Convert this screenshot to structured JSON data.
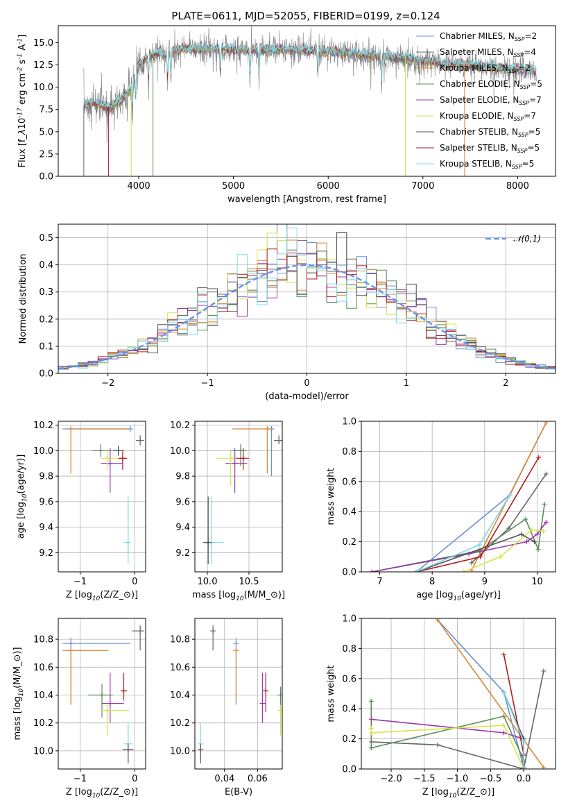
{
  "figure_title": "PLATE=0611, MJD=52055, FIBERID=0199, z=0.124",
  "models": [
    {
      "name": "Chabrier MILES",
      "nssp": "2",
      "color": "#6b8fd6"
    },
    {
      "name": "Salpeter MILES",
      "nssp": "4",
      "color": "#666666"
    },
    {
      "name": "Kroupa MILES",
      "nssp": "2",
      "color": "#d9862e"
    },
    {
      "name": "Chabrier ELODIE",
      "nssp": "5",
      "color": "#5a8a5a"
    },
    {
      "name": "Salpeter ELODIE",
      "nssp": "7",
      "color": "#9a37a8"
    },
    {
      "name": "Kroupa ELODIE",
      "nssp": "7",
      "color": "#d6e34a"
    },
    {
      "name": "Chabrier STELIB",
      "nssp": "5",
      "color": "#555555"
    },
    {
      "name": "Salpeter STELIB",
      "nssp": "5",
      "color": "#b0181e"
    },
    {
      "name": "Kroupa STELIB",
      "nssp": "5",
      "color": "#7fd8e6"
    }
  ],
  "chart_data": [
    {
      "id": "spectrum",
      "type": "line",
      "xlabel": "wavelength [Angstrom, rest frame]",
      "ylabel": "Flux [f$_\\lambda$10$^{-17}$ erg cm$^{-2}$ s$^{-1}$ A$^{-1}$]",
      "xlim": [
        3150,
        8400
      ],
      "ylim": [
        0,
        16.9
      ],
      "xticks": [
        4000,
        5000,
        6000,
        7000,
        8000
      ],
      "yticks": [
        0.0,
        2.5,
        5.0,
        7.5,
        10.0,
        12.5,
        15.0
      ],
      "continuum_x": [
        3420,
        3500,
        3600,
        3700,
        3800,
        3900,
        3950,
        4000,
        4100,
        4200,
        4300,
        4400,
        4600,
        4800,
        5000,
        5200,
        5400,
        5600,
        5800,
        6000,
        6200,
        6400,
        6600,
        6800,
        7000,
        7200,
        7400,
        7600,
        7800,
        8000,
        8200
      ],
      "continuum_y": [
        7.9,
        8.2,
        8.0,
        7.6,
        8.4,
        9.5,
        11.0,
        12.5,
        13.4,
        13.8,
        13.7,
        14.2,
        14.3,
        14.3,
        14.2,
        14.1,
        14.2,
        14.2,
        14.1,
        14.0,
        13.8,
        13.6,
        13.4,
        13.2,
        13.0,
        12.6,
        12.5,
        12.3,
        12.2,
        12.0,
        11.8
      ],
      "absorption_lines": [
        3934,
        3969,
        4102,
        4304,
        4340,
        4861,
        5175,
        5270,
        5890,
        6563
      ],
      "spikes_to_zero": [
        {
          "x": 3420,
          "model": 1
        },
        {
          "x": 3680,
          "model": 7
        },
        {
          "x": 3920,
          "model": 5
        },
        {
          "x": 4150,
          "model": 3
        },
        {
          "x": 6815,
          "model": 5
        },
        {
          "x": 7440,
          "model": 2
        }
      ],
      "legend_position": "upper right"
    },
    {
      "id": "residuals",
      "type": "histogram",
      "xlabel": "(data-model)/error",
      "ylabel": "Normed distribution",
      "xlim": [
        -2.5,
        2.5
      ],
      "ylim": [
        0,
        0.55
      ],
      "xticks": [
        -2,
        -1,
        0,
        1,
        2
      ],
      "yticks": [
        0.0,
        0.1,
        0.2,
        0.3,
        0.4,
        0.5
      ],
      "bin_width": 0.1,
      "reference": {
        "label": "$\\mathcal{N}(0,1)$",
        "color": "#6495ed",
        "mu": 0,
        "sigma": 1
      },
      "legend_position": "upper right",
      "peak_bin": {
        "x": 0.35,
        "value": 0.52
      }
    },
    {
      "id": "age_vs_Z",
      "type": "errorbar",
      "xlabel": "Z [log$_{10}$(Z/Z$_\\odot$)]",
      "ylabel": "age  [log$_{10}$(age/yr)]",
      "xlim": [
        -1.4,
        0.2
      ],
      "ylim": [
        9.05,
        10.23
      ],
      "xticks": [
        -1,
        0
      ],
      "yticks": [
        9.2,
        9.4,
        9.6,
        9.8,
        10.0,
        10.2
      ],
      "points": [
        {
          "m": 0,
          "x": -0.08,
          "xlo": -1.32,
          "xhi": -0.08,
          "y": 10.17,
          "ylo": 10.17,
          "yhi": 10.17
        },
        {
          "m": 2,
          "x": -1.17,
          "xlo": -1.17,
          "xhi": -0.12,
          "y": 10.17,
          "ylo": 9.82,
          "yhi": 10.17
        },
        {
          "m": 8,
          "x": -0.12,
          "xlo": -0.2,
          "xhi": -0.08,
          "y": 9.28,
          "ylo": 9.11,
          "yhi": 9.64
        },
        {
          "m": 3,
          "x": -0.62,
          "xlo": -0.78,
          "xhi": -0.42,
          "y": 10.0,
          "ylo": 9.95,
          "yhi": 10.05
        },
        {
          "m": 4,
          "x": -0.45,
          "xlo": -0.62,
          "xhi": -0.22,
          "y": 9.9,
          "ylo": 9.67,
          "yhi": 10.02
        },
        {
          "m": 5,
          "x": -0.5,
          "xlo": -0.62,
          "xhi": -0.3,
          "y": 9.94,
          "ylo": 9.85,
          "yhi": 10.0
        },
        {
          "m": 7,
          "x": -0.22,
          "xlo": -0.3,
          "xhi": -0.14,
          "y": 9.94,
          "ylo": 9.85,
          "yhi": 10.0
        },
        {
          "m": 6,
          "x": -0.3,
          "xlo": -0.4,
          "xhi": -0.2,
          "y": 10.0,
          "ylo": 9.96,
          "yhi": 10.04
        },
        {
          "m": 1,
          "x": 0.1,
          "xlo": 0.02,
          "xhi": 0.17,
          "y": 10.08,
          "ylo": 10.04,
          "yhi": 10.12
        }
      ]
    },
    {
      "id": "age_vs_mass",
      "type": "errorbar",
      "xlabel": "mass [log$_{10}$(M/M$_\\odot$)]",
      "ylabel": "",
      "xlim": [
        9.85,
        10.9
      ],
      "ylim": [
        9.05,
        10.23
      ],
      "xticks": [
        10.0,
        10.5
      ],
      "yticks": [
        9.2,
        9.4,
        9.6,
        9.8,
        10.0,
        10.2
      ],
      "points": [
        {
          "m": 0,
          "x": 10.77,
          "xlo": 10.73,
          "xhi": 10.8,
          "y": 10.17,
          "ylo": 9.8,
          "yhi": 10.17
        },
        {
          "m": 2,
          "x": 10.72,
          "xlo": 10.3,
          "xhi": 10.72,
          "y": 10.17,
          "ylo": 9.82,
          "yhi": 10.17
        },
        {
          "m": 8,
          "x": 10.05,
          "xlo": 9.95,
          "xhi": 10.2,
          "y": 9.28,
          "ylo": 9.11,
          "yhi": 9.64
        },
        {
          "m": 3,
          "x": 10.4,
          "xlo": 10.28,
          "xhi": 10.47,
          "y": 10.0,
          "ylo": 9.88,
          "yhi": 10.05
        },
        {
          "m": 4,
          "x": 10.33,
          "xlo": 10.22,
          "xhi": 10.48,
          "y": 9.9,
          "ylo": 9.67,
          "yhi": 10.02
        },
        {
          "m": 5,
          "x": 10.28,
          "xlo": 10.1,
          "xhi": 10.32,
          "y": 9.94,
          "ylo": 9.72,
          "yhi": 10.0
        },
        {
          "m": 7,
          "x": 10.43,
          "xlo": 10.34,
          "xhi": 10.5,
          "y": 9.94,
          "ylo": 9.85,
          "yhi": 10.02
        },
        {
          "m": 6,
          "x": 10.01,
          "xlo": 9.95,
          "xhi": 10.05,
          "y": 9.28,
          "ylo": 9.11,
          "yhi": 9.64
        },
        {
          "m": 1,
          "x": 10.86,
          "xlo": 10.8,
          "xhi": 10.9,
          "y": 10.08,
          "ylo": 10.05,
          "yhi": 10.12
        }
      ]
    },
    {
      "id": "mass_weight_vs_age",
      "type": "line",
      "xlabel": "age  [log$_{10}$(age/yr)]",
      "ylabel": "mass weight",
      "xlim": [
        6.65,
        10.35
      ],
      "ylim": [
        0,
        1.0
      ],
      "xticks": [
        7,
        8,
        9,
        10
      ],
      "yticks": [
        0.0,
        0.2,
        0.4,
        0.6,
        0.8,
        1.0
      ],
      "series": [
        {
          "m": 0,
          "x": [
            7.7,
            9.48,
            10.17
          ],
          "y": [
            0.0,
            0.51,
            0.99
          ]
        },
        {
          "m": 1,
          "x": [
            8.75,
            9.46,
            10.17
          ],
          "y": [
            0.06,
            0.29,
            0.65
          ]
        },
        {
          "m": 2,
          "x": [
            8.75,
            10.17
          ],
          "y": [
            0.01,
            0.99
          ]
        },
        {
          "m": 3,
          "x": [
            6.85,
            8.9,
            9.78,
            10.02,
            10.14
          ],
          "y": [
            0.0,
            0.14,
            0.35,
            0.15,
            0.45
          ]
        },
        {
          "m": 4,
          "x": [
            6.85,
            8.7,
            9.8,
            10.0,
            10.17
          ],
          "y": [
            0.0,
            0.12,
            0.2,
            0.25,
            0.33
          ]
        },
        {
          "m": 5,
          "x": [
            8.6,
            9.3,
            9.9,
            10.12
          ],
          "y": [
            0.0,
            0.1,
            0.28,
            0.27
          ]
        },
        {
          "m": 6,
          "x": [
            7.7,
            9.7,
            9.95
          ],
          "y": [
            0.0,
            0.25,
            0.2
          ]
        },
        {
          "m": 7,
          "x": [
            7.7,
            8.92,
            10.03
          ],
          "y": [
            0.0,
            0.1,
            0.76
          ]
        },
        {
          "m": 8,
          "x": [
            7.7,
            8.9,
            9.48
          ],
          "y": [
            0.0,
            0.18,
            0.51
          ]
        }
      ]
    },
    {
      "id": "mass_vs_Z",
      "type": "errorbar",
      "xlabel": "Z [log$_{10}$(Z/Z$_\\odot$)]",
      "ylabel": "mass [log$_{10}$(M/M$_\\odot$)]",
      "xlim": [
        -1.4,
        0.2
      ],
      "ylim": [
        9.87,
        10.95
      ],
      "xticks": [
        -1,
        0
      ],
      "yticks": [
        10.0,
        10.2,
        10.4,
        10.6,
        10.8
      ],
      "points": [
        {
          "m": 0,
          "x": -1.17,
          "xlo": -1.32,
          "xhi": -0.08,
          "y": 10.77,
          "ylo": 10.33,
          "yhi": 10.81
        },
        {
          "m": 2,
          "x": -1.17,
          "xlo": -1.32,
          "xhi": -0.48,
          "y": 10.72,
          "ylo": 10.33,
          "yhi": 10.72
        },
        {
          "m": 8,
          "x": -0.12,
          "xlo": -0.2,
          "xhi": -0.04,
          "y": 10.05,
          "ylo": 9.95,
          "yhi": 10.2
        },
        {
          "m": 3,
          "x": -0.6,
          "xlo": -0.85,
          "xhi": -0.4,
          "y": 10.4,
          "ylo": 10.24,
          "yhi": 10.48
        },
        {
          "m": 4,
          "x": -0.45,
          "xlo": -0.6,
          "xhi": -0.2,
          "y": 10.34,
          "ylo": 10.2,
          "yhi": 10.56
        },
        {
          "m": 5,
          "x": -0.5,
          "xlo": -0.62,
          "xhi": -0.1,
          "y": 10.29,
          "ylo": 10.11,
          "yhi": 10.33
        },
        {
          "m": 7,
          "x": -0.2,
          "xlo": -0.26,
          "xhi": -0.14,
          "y": 10.43,
          "ylo": 10.36,
          "yhi": 10.56
        },
        {
          "m": 6,
          "x": -0.12,
          "xlo": -0.22,
          "xhi": -0.02,
          "y": 10.01,
          "ylo": 9.91,
          "yhi": 10.05
        },
        {
          "m": 1,
          "x": 0.1,
          "xlo": -0.05,
          "xhi": 0.17,
          "y": 10.86,
          "ylo": 10.72,
          "yhi": 10.9
        }
      ]
    },
    {
      "id": "mass_vs_ebv",
      "type": "errorbar",
      "xlabel": "E(B-V)",
      "ylabel": "",
      "xlim": [
        0.022,
        0.075
      ],
      "ylim": [
        9.87,
        10.95
      ],
      "xticks": [
        0.04,
        0.06
      ],
      "yticks": [
        10.0,
        10.2,
        10.4,
        10.6,
        10.8
      ],
      "points": [
        {
          "m": 0,
          "x": 0.047,
          "y": 10.77,
          "ylo": 10.33,
          "yhi": 10.81
        },
        {
          "m": 2,
          "x": 0.047,
          "y": 10.72,
          "ylo": 10.35,
          "yhi": 10.75
        },
        {
          "m": 8,
          "x": 0.0255,
          "y": 10.05,
          "ylo": 9.95,
          "yhi": 10.2
        },
        {
          "m": 6,
          "x": 0.0255,
          "y": 10.01,
          "ylo": 9.91,
          "yhi": 10.05
        },
        {
          "m": 3,
          "x": 0.074,
          "y": 10.4,
          "ylo": 10.24,
          "yhi": 10.46
        },
        {
          "m": 4,
          "x": 0.063,
          "y": 10.34,
          "ylo": 10.2,
          "yhi": 10.56
        },
        {
          "m": 7,
          "x": 0.065,
          "y": 10.43,
          "ylo": 10.28,
          "yhi": 10.56
        },
        {
          "m": 5,
          "x": 0.074,
          "y": 10.29,
          "ylo": 10.11,
          "yhi": 10.33
        },
        {
          "m": 1,
          "x": 0.033,
          "y": 10.86,
          "ylo": 10.72,
          "yhi": 10.9
        }
      ]
    },
    {
      "id": "mass_weight_vs_Z",
      "type": "line",
      "xlabel": "Z [log$_{10}$(Z/Z$_\\odot$)]",
      "ylabel": "mass weight",
      "xlim": [
        -2.45,
        0.48
      ],
      "ylim": [
        0,
        1.0
      ],
      "xticks": [
        -2.0,
        -1.5,
        -1.0,
        -0.5,
        0.0
      ],
      "yticks": [
        0.0,
        0.2,
        0.4,
        0.6,
        0.8,
        1.0
      ],
      "series": [
        {
          "m": 0,
          "x": [
            -1.3,
            -0.3,
            0.0
          ],
          "y": [
            0.99,
            0.51,
            0.01
          ]
        },
        {
          "m": 1,
          "x": [
            -2.3,
            -1.3,
            0.0,
            0.3
          ],
          "y": [
            0.18,
            0.16,
            0.0,
            0.65
          ]
        },
        {
          "m": 2,
          "x": [
            -1.3,
            0.3
          ],
          "y": [
            0.99,
            0.01
          ]
        },
        {
          "m": 3,
          "x": [
            -2.3,
            -2.3,
            -0.3,
            0.0,
            0.0
          ],
          "y": [
            0.45,
            0.14,
            0.35,
            0.06,
            0.2
          ]
        },
        {
          "m": 4,
          "x": [
            -2.3,
            -0.3,
            0.0,
            0.0
          ],
          "y": [
            0.33,
            0.24,
            0.2,
            0.09
          ]
        },
        {
          "m": 5,
          "x": [
            -2.3,
            -2.3,
            -0.3,
            0.0
          ],
          "y": [
            0.27,
            0.24,
            0.29,
            0.0
          ]
        },
        {
          "m": 6,
          "x": [
            -0.3,
            0.0,
            0.0
          ],
          "y": [
            0.51,
            0.2,
            0.05
          ]
        },
        {
          "m": 7,
          "x": [
            -0.3,
            0.0,
            0.0
          ],
          "y": [
            0.76,
            0.1,
            0.0
          ]
        },
        {
          "m": 8,
          "x": [
            -0.3,
            0.0,
            0.0
          ],
          "y": [
            0.51,
            0.18,
            0.0
          ]
        }
      ]
    }
  ]
}
